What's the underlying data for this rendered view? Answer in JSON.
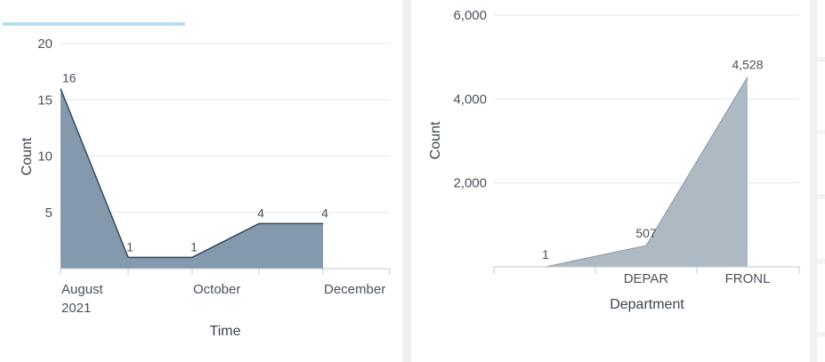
{
  "left_chart": {
    "title_fragment": "",
    "chart_data": {
      "type": "area",
      "xlabel": "Time",
      "ylabel": "Count",
      "ylim": [
        0,
        20
      ],
      "yticks": [
        5,
        10,
        15,
        20
      ],
      "x_tick_labels": [
        {
          "line1": "August",
          "line2": "2021"
        },
        {
          "line1": "October",
          "line2": ""
        },
        {
          "line1": "December",
          "line2": ""
        }
      ],
      "points": [
        {
          "x": "2021-08",
          "y": 16
        },
        {
          "x": "2021-09",
          "y": 1
        },
        {
          "x": "2021-10",
          "y": 1
        },
        {
          "x": "2021-11",
          "y": 4
        },
        {
          "x": "2021-12",
          "y": 4
        }
      ],
      "fill_color": "#8599ad",
      "line_color": "#2f4a63",
      "grid": true
    }
  },
  "right_chart": {
    "chart_data": {
      "type": "area",
      "xlabel": "Department",
      "ylabel": "Count",
      "ylim": [
        0,
        6000
      ],
      "yticks": [
        2000,
        4000,
        6000
      ],
      "ytick_labels": [
        "2,000",
        "4,000",
        "6,000"
      ],
      "categories": [
        "",
        "DEPAR",
        "FRONL"
      ],
      "values": [
        1,
        507,
        4528
      ],
      "value_labels": [
        "1",
        "507",
        "4,528"
      ],
      "fill_color": "#adbac4",
      "line_color": "#8a9aa7",
      "grid": true
    }
  }
}
